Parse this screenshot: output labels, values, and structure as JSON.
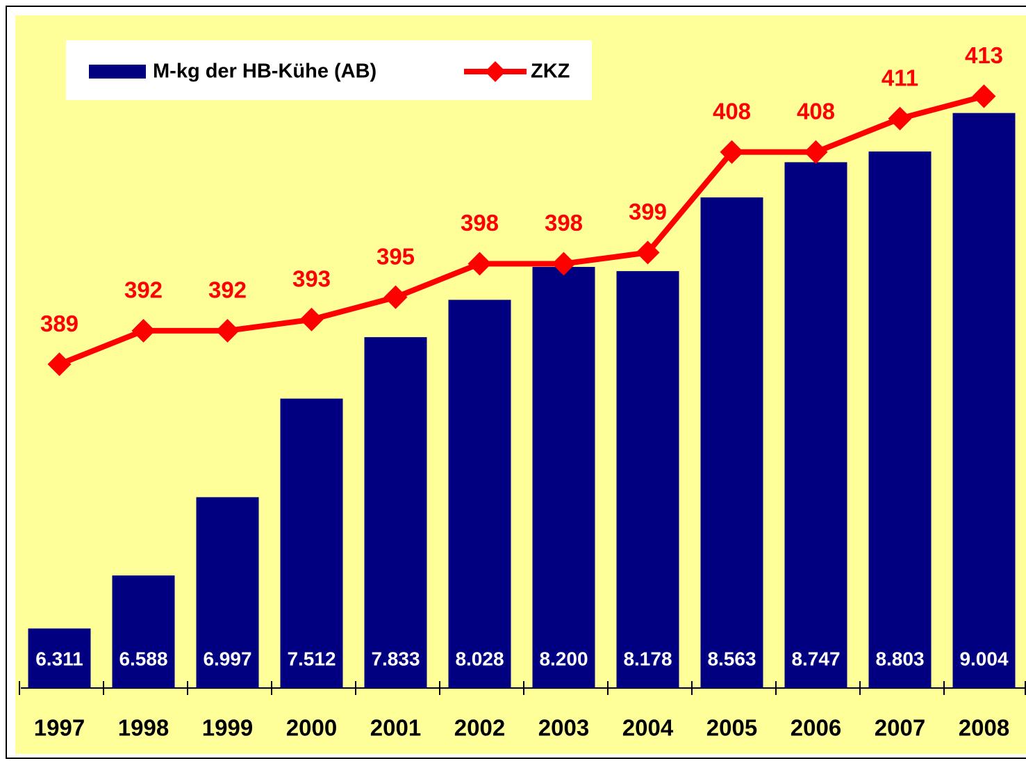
{
  "chart_data": {
    "type": "bar_line",
    "categories": [
      "1997",
      "1998",
      "1999",
      "2000",
      "2001",
      "2002",
      "2003",
      "2004",
      "2005",
      "2006",
      "2007",
      "2008"
    ],
    "series": [
      {
        "name": "M-kg der HB-Kühe (AB)",
        "type": "bar",
        "color": "#000080",
        "values": [
          6311,
          6588,
          6997,
          7512,
          7833,
          8028,
          8200,
          8178,
          8563,
          8747,
          8803,
          9004
        ],
        "value_labels": [
          "6.311",
          "6.588",
          "6.997",
          "7.512",
          "7.833",
          "8.028",
          "8.200",
          "8.178",
          "8.563",
          "8.747",
          "8.803",
          "9.004"
        ]
      },
      {
        "name": "ZKZ",
        "type": "line",
        "axis": "y2",
        "color": "#ff0000",
        "values": [
          389,
          392,
          392,
          393,
          395,
          398,
          398,
          399,
          408,
          408,
          411,
          413
        ]
      }
    ],
    "ylim": [
      6000,
      9500
    ],
    "y2lim": [
      360,
      420
    ],
    "legend": "top-left",
    "background": "#ffff99"
  }
}
